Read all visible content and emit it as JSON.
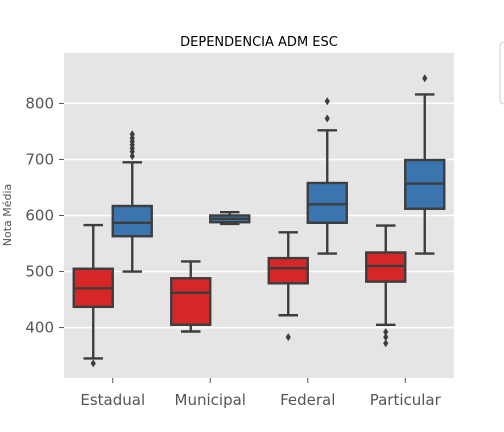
{
  "chart_data": {
    "type": "box",
    "title": "DEPENDENCIA ADM ESC",
    "xlabel": "",
    "ylabel": "Nota Média",
    "categories": [
      "Estadual",
      "Municipal",
      "Federal",
      "Particular"
    ],
    "yticks": [
      400,
      500,
      600,
      700,
      800
    ],
    "ylim": [
      310,
      890
    ],
    "grid": true,
    "legend": "top-right (cropped)",
    "colors": {
      "series_a": "#d62728",
      "series_b": "#3a75b0",
      "background": "#e5e5e5",
      "grid": "#ffffff",
      "line": "#3d3d3d"
    },
    "series": [
      {
        "boxes": [
          {
            "whislo": 345,
            "q1": 437,
            "med": 470,
            "q3": 505,
            "whishi": 583,
            "fliers": [
              336
            ]
          },
          {
            "whislo": 393,
            "q1": 405,
            "med": 462,
            "q3": 488,
            "whishi": 518,
            "fliers": []
          },
          {
            "whislo": 422,
            "q1": 479,
            "med": 506,
            "q3": 524,
            "whishi": 570,
            "fliers": [
              383
            ]
          },
          {
            "whislo": 405,
            "q1": 482,
            "med": 510,
            "q3": 534,
            "whishi": 582,
            "fliers": [
              392,
              383,
              372
            ]
          }
        ]
      },
      {
        "boxes": [
          {
            "whislo": 500,
            "q1": 563,
            "med": 587,
            "q3": 617,
            "whishi": 695,
            "fliers": [
              706,
              714,
              720,
              726,
              732,
              738,
              745
            ]
          },
          {
            "whislo": 585,
            "q1": 588,
            "med": 594,
            "q3": 600,
            "whishi": 606,
            "fliers": []
          },
          {
            "whislo": 532,
            "q1": 587,
            "med": 620,
            "q3": 658,
            "whishi": 752,
            "fliers": [
              773,
              804
            ]
          },
          {
            "whislo": 532,
            "q1": 612,
            "med": 657,
            "q3": 699,
            "whishi": 816,
            "fliers": [
              845
            ]
          }
        ]
      }
    ]
  }
}
